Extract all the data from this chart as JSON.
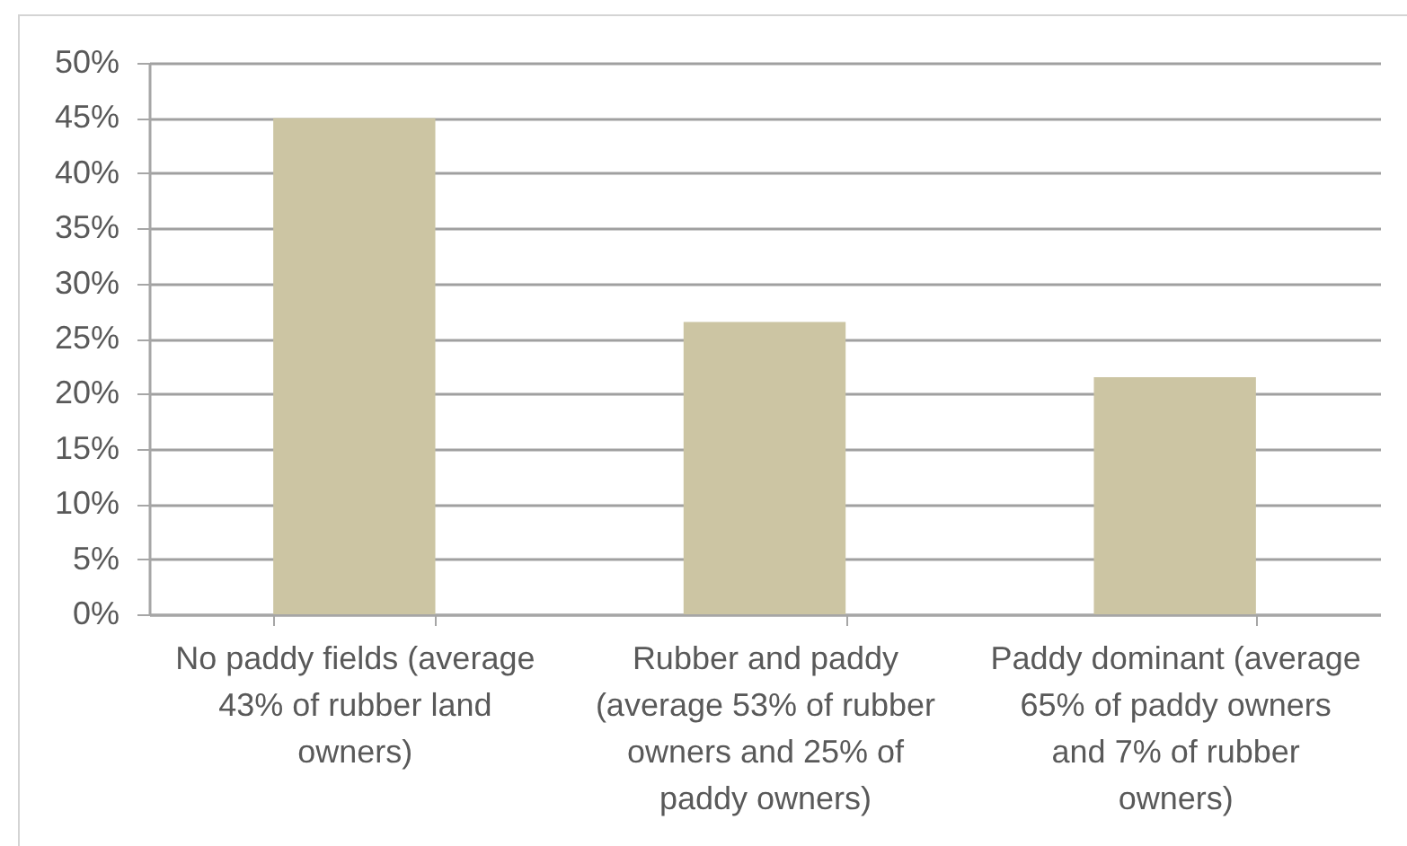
{
  "chart_data": {
    "type": "bar",
    "categories": [
      "No paddy fields (average 43% of rubber land owners)",
      "Rubber and paddy (average 53% of rubber owners and 25% of paddy owners)",
      "Paddy dominant (average 65% of paddy owners and 7% of rubber owners)"
    ],
    "values": [
      45,
      26.5,
      21.5
    ],
    "color": "#ccc5a3",
    "ylim": [
      0,
      50
    ],
    "yticks": [
      {
        "value": 0,
        "label": "0%"
      },
      {
        "value": 5,
        "label": "5%"
      },
      {
        "value": 10,
        "label": "10%"
      },
      {
        "value": 15,
        "label": "15%"
      },
      {
        "value": 20,
        "label": "20%"
      },
      {
        "value": 25,
        "label": "25%"
      },
      {
        "value": 30,
        "label": "30%"
      },
      {
        "value": 35,
        "label": "35%"
      },
      {
        "value": 40,
        "label": "40%"
      },
      {
        "value": 45,
        "label": "45%"
      },
      {
        "value": 50,
        "label": "50%"
      }
    ],
    "grid": "y"
  }
}
